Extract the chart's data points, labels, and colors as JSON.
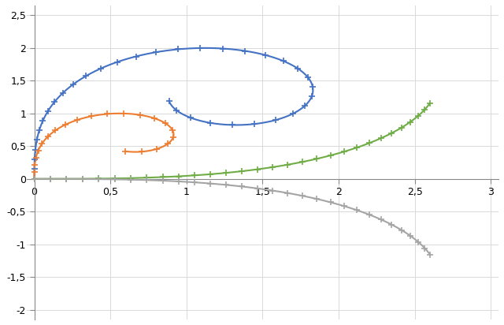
{
  "blue_color": "#4472C4",
  "orange_color": "#ED7D31",
  "green_color": "#70AD47",
  "gray_color": "#A5A5A5",
  "marker_size": 6,
  "linewidth": 1.5,
  "xlim": [
    -0.05,
    3.05
  ],
  "ylim": [
    -2.15,
    2.65
  ],
  "xticks": [
    0,
    0.5,
    1.0,
    1.5,
    2.0,
    2.5,
    3.0
  ],
  "yticks": [
    -2,
    -1.5,
    -1,
    -0.5,
    0,
    0.5,
    1,
    1.5,
    2,
    2.5
  ],
  "xtick_labels": [
    "0",
    "0,5",
    "1",
    "1,5",
    "2",
    "2,5",
    "3"
  ],
  "ytick_labels": [
    "-2",
    "-1,5",
    "-1",
    "-0,5",
    "0",
    "0,5",
    "1",
    "1,5",
    "2",
    "2,5"
  ],
  "figsize": [
    6.4,
    4.12
  ],
  "dpi": 100,
  "grid_color": "#D9D9D9",
  "background_color": "#FFFFFF",
  "blue_npts": 35,
  "orange_npts": 22,
  "green_npts": 30,
  "gray_npts": 30
}
